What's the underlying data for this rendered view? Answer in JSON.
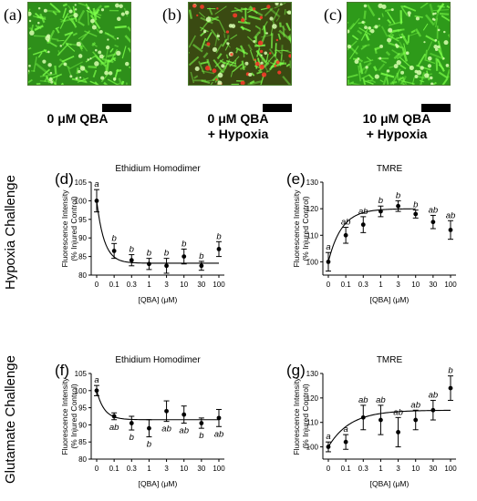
{
  "images": [
    {
      "letter": "(a)",
      "caption_lines": [
        "0 μM QBA",
        ""
      ],
      "tint": "#2e8f1a",
      "red": 0.0
    },
    {
      "letter": "(b)",
      "caption_lines": [
        "0 μM QBA",
        "+ Hypoxia"
      ],
      "tint": "#3a4a12",
      "red": 0.55
    },
    {
      "letter": "(c)",
      "caption_lines": [
        "10 μM QBA",
        "+ Hypoxia"
      ],
      "tint": "#2e9a1a",
      "red": 0.0
    }
  ],
  "row_labels": [
    "Hypoxia Challenge",
    "Glutamate Challenge"
  ],
  "colors": {
    "text": "#000000",
    "cell_green": "#7dff4a",
    "cell_red": "#ff3a2a"
  },
  "chart_data": [
    {
      "id": "d",
      "letter": "(d)",
      "type": "scatter",
      "title": "Ethidium Homodimer",
      "xlabel": "[QBA] (μM)",
      "ylabel": [
        "Fluorescence Intensity",
        "(% Injured Control)"
      ],
      "categories": [
        "0",
        "0.1",
        "0.3",
        "1",
        "3",
        "10",
        "30",
        "100"
      ],
      "ylim": [
        80,
        105
      ],
      "yticks": [
        80,
        85,
        90,
        95,
        100,
        105
      ],
      "values": [
        100,
        86.5,
        84,
        83,
        82.5,
        85,
        82.5,
        87
      ],
      "errors": [
        3,
        2,
        1.5,
        1.5,
        2,
        2,
        1.2,
        2
      ],
      "letters": [
        "a",
        "b",
        "b",
        "b",
        "b",
        "b",
        "b",
        "b"
      ],
      "letter_pos": [
        "above",
        "above",
        "above",
        "above",
        "above",
        "above",
        "above",
        "above"
      ],
      "fit": {
        "type": "decay",
        "y0": 100,
        "plateau": 83.2,
        "k": 2.3
      }
    },
    {
      "id": "e",
      "letter": "(e)",
      "type": "scatter",
      "title": "TMRE",
      "xlabel": "[QBA] (μM)",
      "ylabel": [
        "Fluorescence Intensity",
        "(% Injured Control)"
      ],
      "categories": [
        "0",
        "0.1",
        "0.3",
        "1",
        "3",
        "10",
        "30",
        "100"
      ],
      "ylim": [
        95,
        130
      ],
      "yticks": [
        100,
        110,
        120,
        130
      ],
      "values": [
        100,
        110,
        114,
        119,
        121,
        118,
        115,
        112
      ],
      "errors": [
        3.5,
        3,
        3,
        2,
        2,
        1.5,
        2.5,
        3.5
      ],
      "letters": [
        "a",
        "ab",
        "ab",
        "b",
        "b",
        "b",
        "ab",
        "ab"
      ],
      "letter_pos": [
        "above",
        "above",
        "above",
        "above",
        "above",
        "above",
        "above",
        "above"
      ],
      "fit": {
        "type": "rise",
        "y0": 100,
        "plateau": 120,
        "k": 1.3,
        "last_index": 5
      }
    },
    {
      "id": "f",
      "letter": "(f)",
      "type": "scatter",
      "title": "Ethidium Homodimer",
      "xlabel": "[QBA] (μM)",
      "ylabel": [
        "Fluorescence Intensity",
        "(% Injured Control)"
      ],
      "categories": [
        "0",
        "0.1",
        "0.3",
        "1",
        "3",
        "10",
        "30",
        "100"
      ],
      "ylim": [
        80,
        105
      ],
      "yticks": [
        80,
        85,
        90,
        95,
        100,
        105
      ],
      "values": [
        100,
        92.5,
        90.5,
        89,
        94,
        93,
        90.5,
        92
      ],
      "errors": [
        1.5,
        1,
        2,
        2.5,
        3,
        2.5,
        1.5,
        2.5
      ],
      "letters": [
        "a",
        "ab",
        "b",
        "b",
        "ab",
        "ab",
        "b",
        "ab"
      ],
      "letter_pos": [
        "above",
        "below",
        "below",
        "below",
        "below",
        "below",
        "below",
        "below"
      ],
      "fit": {
        "type": "decay",
        "y0": 100,
        "plateau": 91.5,
        "k": 2.3
      }
    },
    {
      "id": "g",
      "letter": "(g)",
      "type": "scatter",
      "title": "TMRE",
      "xlabel": "[QBA] (μM)",
      "ylabel": [
        "Fluorescence Intensity",
        "(% Injured Control)"
      ],
      "categories": [
        "0",
        "0.1",
        "0.3",
        "1",
        "3",
        "10",
        "30",
        "100"
      ],
      "ylim": [
        95,
        130
      ],
      "yticks": [
        100,
        110,
        120,
        130
      ],
      "values": [
        100,
        102,
        112,
        111,
        106,
        111,
        115,
        124
      ],
      "errors": [
        2,
        3,
        5,
        6,
        6,
        4,
        4,
        5
      ],
      "letters": [
        "a",
        "a",
        "ab",
        "ab",
        "ab",
        "ab",
        "ab",
        "b"
      ],
      "letter_pos": [
        "above",
        "above",
        "above",
        "above",
        "above",
        "above",
        "above",
        "above"
      ],
      "fit": {
        "type": "rise",
        "y0": 100,
        "plateau": 115,
        "k": 0.8,
        "last_index": 7
      }
    }
  ]
}
